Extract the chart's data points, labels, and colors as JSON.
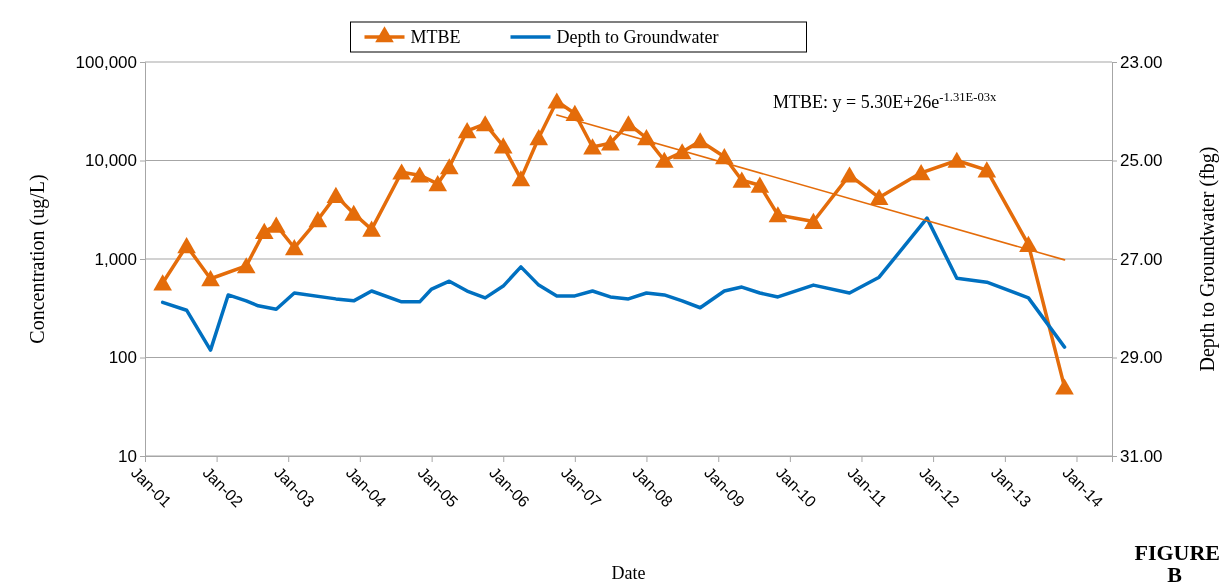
{
  "chart_data": {
    "type": "line",
    "xlabel": "Date",
    "ylabel": "Concentration (ug/L)",
    "y2label": "Depth to Groundwater (fbg)",
    "log": "y",
    "grid": "y",
    "legend": "top",
    "xlim": [
      "2001-01",
      "2014-07"
    ],
    "xticks": [
      {
        "value": "2001-01",
        "label": "Jan-01"
      },
      {
        "value": "2002-01",
        "label": "Jan-02"
      },
      {
        "value": "2003-01",
        "label": "Jan-03"
      },
      {
        "value": "2004-01",
        "label": "Jan-04"
      },
      {
        "value": "2005-01",
        "label": "Jan-05"
      },
      {
        "value": "2006-01",
        "label": "Jan-06"
      },
      {
        "value": "2007-01",
        "label": "Jan-07"
      },
      {
        "value": "2008-01",
        "label": "Jan-08"
      },
      {
        "value": "2009-01",
        "label": "Jan-09"
      },
      {
        "value": "2010-01",
        "label": "Jan-10"
      },
      {
        "value": "2011-01",
        "label": "Jan-11"
      },
      {
        "value": "2012-01",
        "label": "Jan-12"
      },
      {
        "value": "2013-01",
        "label": "Jan-13"
      },
      {
        "value": "2014-01",
        "label": "Jan-14"
      }
    ],
    "ylim": [
      10,
      100000
    ],
    "yticks": [
      10,
      100,
      {
        "value": 1000,
        "label": "1,000"
      },
      {
        "value": 10000,
        "label": "10,000"
      },
      {
        "value": 100000,
        "label": "100,000"
      }
    ],
    "y2lim": [
      31,
      23
    ],
    "y2ticks": [
      {
        "value": 31,
        "label": "31.00"
      },
      {
        "value": 29,
        "label": "29.00"
      },
      {
        "value": 27,
        "label": "27.00"
      },
      {
        "value": 25,
        "label": "25.00"
      },
      {
        "value": 23,
        "label": "23.00"
      }
    ],
    "annotations": [
      "MTBE: y = 5.30E+26e$^{-1.31E-03x}$",
      "FIGURE B"
    ],
    "series": [
      {
        "name": "MTBE",
        "color": "#e46c0a",
        "marker": "triangle",
        "x": [
          "2001-04",
          "2001-08",
          "2001-12",
          "2002-06",
          "2002-09",
          "2002-11",
          "2003-02",
          "2003-06",
          "2003-09",
          "2003-12",
          "2004-03",
          "2004-08",
          "2004-11",
          "2005-02",
          "2005-04",
          "2005-07",
          "2005-10",
          "2006-01",
          "2006-04",
          "2006-07",
          "2006-10",
          "2007-01",
          "2007-04",
          "2007-07",
          "2007-10",
          "2008-01",
          "2008-04",
          "2008-07",
          "2008-10",
          "2009-02",
          "2009-05",
          "2009-08",
          "2009-11",
          "2010-05",
          "2010-11",
          "2011-04",
          "2011-11",
          "2012-05",
          "2012-10",
          "2013-05",
          "2013-11"
        ],
        "values": [
          570,
          1360,
          630,
          850,
          1900,
          2200,
          1300,
          2500,
          4400,
          2900,
          2000,
          7600,
          7100,
          5800,
          8600,
          20000,
          23500,
          14000,
          6500,
          17000,
          40000,
          30000,
          13700,
          15000,
          23500,
          17000,
          10000,
          12200,
          15800,
          10900,
          6300,
          5600,
          2800,
          2400,
          7100,
          4200,
          7500,
          10000,
          8000,
          1400,
          50
        ]
      },
      {
        "name": "Depth to Groundwater",
        "color": "#0070c0",
        "axis": "y2",
        "x": [
          "2001-04",
          "2001-08",
          "2001-12",
          "2002-03",
          "2002-06",
          "2002-08",
          "2002-11",
          "2003-02",
          "2003-09",
          "2003-12",
          "2004-03",
          "2004-08",
          "2004-11",
          "2005-01",
          "2005-04",
          "2005-07",
          "2005-10",
          "2006-01",
          "2006-04",
          "2006-07",
          "2006-10",
          "2007-01",
          "2007-04",
          "2007-07",
          "2007-10",
          "2008-01",
          "2008-04",
          "2008-07",
          "2008-10",
          "2009-02",
          "2009-05",
          "2009-08",
          "2009-11",
          "2010-05",
          "2010-11",
          "2011-04",
          "2011-12",
          "2012-05",
          "2012-10",
          "2013-05",
          "2013-11"
        ],
        "values": [
          27.88,
          28.04,
          28.85,
          27.73,
          27.85,
          27.95,
          28.02,
          27.69,
          27.81,
          27.85,
          27.65,
          27.87,
          27.87,
          27.61,
          27.45,
          27.65,
          27.79,
          27.55,
          27.16,
          27.53,
          27.75,
          27.75,
          27.65,
          27.77,
          27.81,
          27.69,
          27.73,
          27.85,
          27.99,
          27.65,
          27.57,
          27.69,
          27.77,
          27.53,
          27.69,
          27.37,
          26.17,
          27.39,
          27.47,
          27.79,
          28.79
        ]
      },
      {
        "type": "line",
        "color": "#e46c0a",
        "x": [
          "2006-10",
          "2013-11"
        ],
        "values": [
          29000,
          980
        ]
      }
    ]
  }
}
